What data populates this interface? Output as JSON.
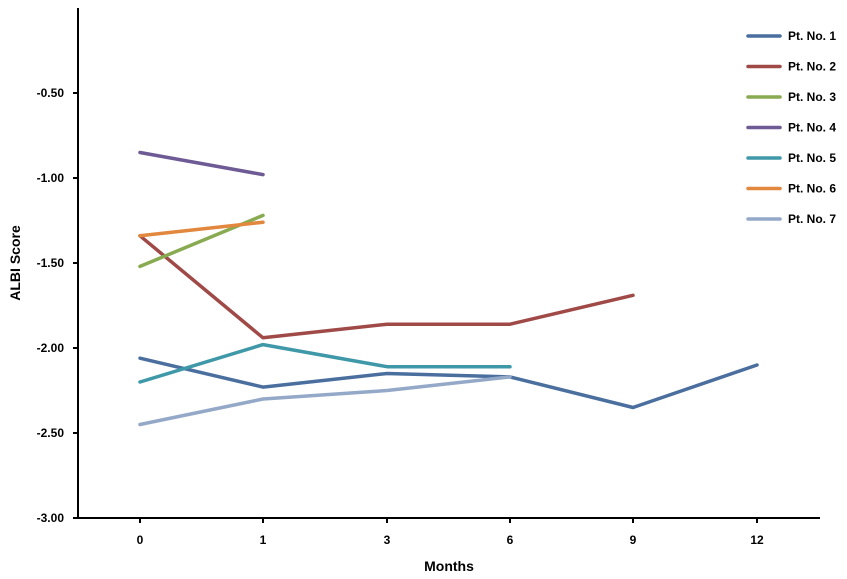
{
  "chart_data": {
    "type": "line",
    "title": "",
    "xlabel": "Months",
    "ylabel": "ALBI Score",
    "x": [
      0,
      1,
      3,
      6,
      9,
      12
    ],
    "x_tick_labels": [
      "0",
      "1",
      "3",
      "6",
      "9",
      "12"
    ],
    "ylim": [
      -3.0,
      0.0
    ],
    "y_ticks": [
      -0.5,
      -1.0,
      -1.5,
      -2.0,
      -2.5,
      -3.0
    ],
    "y_tick_labels": [
      "-0.50",
      "-1.00",
      "-1.50",
      "-2.00",
      "-2.50",
      "-3.00"
    ],
    "grid": false,
    "legend_position": "top-right",
    "series": [
      {
        "name": "Pt. No. 1",
        "color": "#4a6f9f",
        "x": [
          0,
          1,
          3,
          6,
          9,
          12
        ],
        "y": [
          -2.06,
          -2.23,
          -2.15,
          -2.17,
          -2.35,
          -2.1
        ]
      },
      {
        "name": "Pt. No. 2",
        "color": "#a04a48",
        "x": [
          0,
          1,
          3,
          6,
          9
        ],
        "y": [
          -1.34,
          -1.94,
          -1.86,
          -1.86,
          -1.69
        ]
      },
      {
        "name": "Pt. No. 3",
        "color": "#88aa50",
        "x": [
          0,
          1
        ],
        "y": [
          -1.52,
          -1.22
        ]
      },
      {
        "name": "Pt. No. 4",
        "color": "#6e5a94",
        "x": [
          0,
          1
        ],
        "y": [
          -0.85,
          -0.98
        ]
      },
      {
        "name": "Pt. No. 5",
        "color": "#3f98a8",
        "x": [
          0,
          1,
          3,
          6
        ],
        "y": [
          -2.2,
          -1.98,
          -2.11,
          -2.11
        ]
      },
      {
        "name": "Pt. No. 6",
        "color": "#e2873e",
        "x": [
          0,
          1
        ],
        "y": [
          -1.34,
          -1.26
        ]
      },
      {
        "name": "Pt. No. 7",
        "color": "#94a8c8",
        "x": [
          0,
          1,
          3,
          6
        ],
        "y": [
          -2.45,
          -2.3,
          -2.25,
          -2.17
        ]
      }
    ]
  }
}
